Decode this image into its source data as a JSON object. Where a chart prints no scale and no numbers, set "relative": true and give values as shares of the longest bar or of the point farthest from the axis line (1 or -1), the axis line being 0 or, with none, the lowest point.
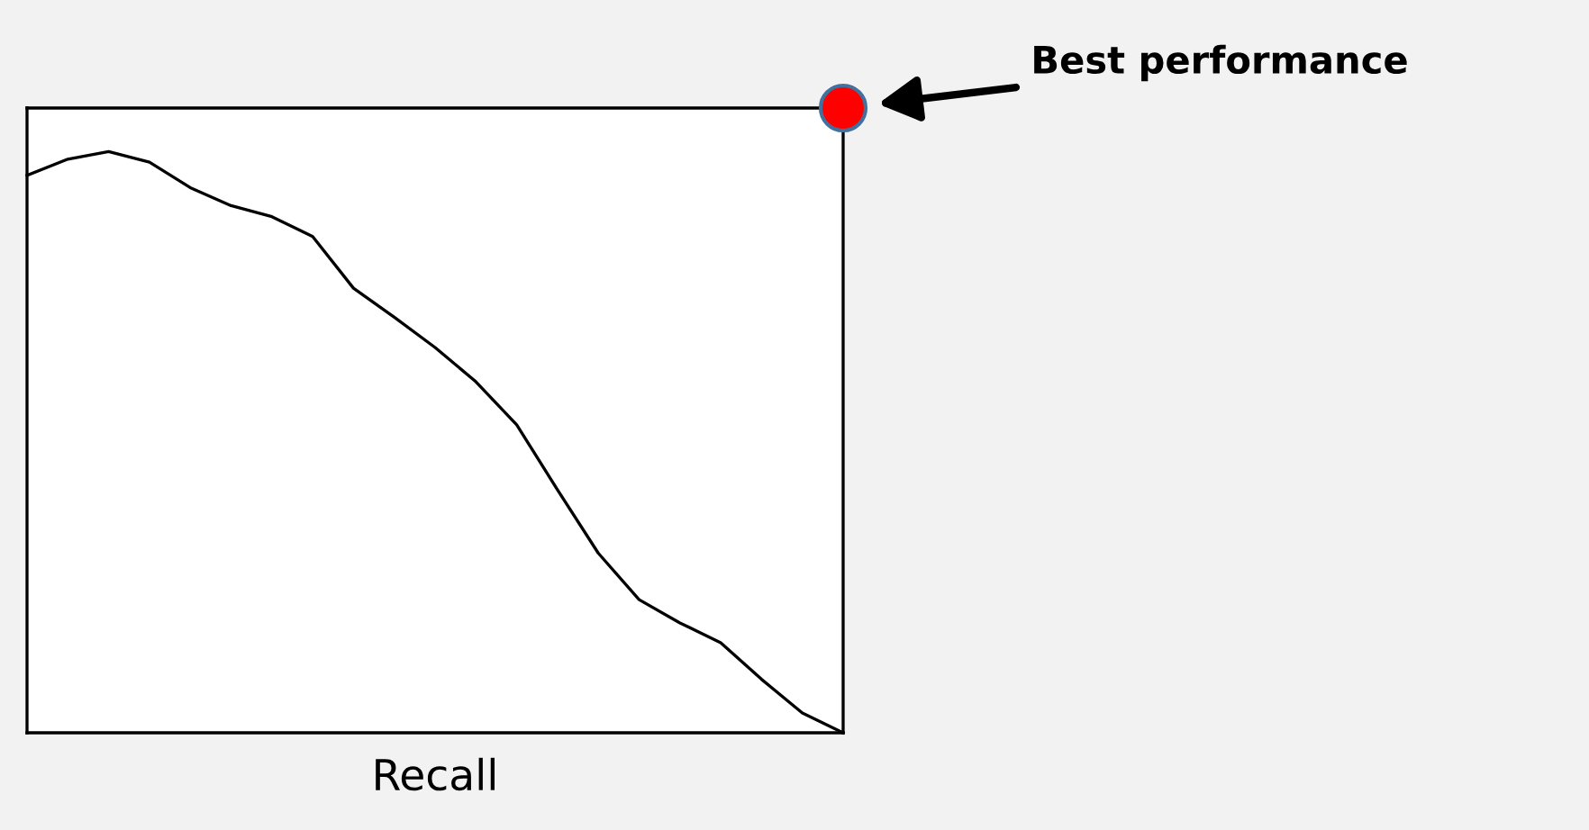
{
  "chart_data": {
    "type": "line",
    "relative": true,
    "xlabel": "Recall",
    "categories": [
      null,
      null,
      null,
      null,
      null,
      null,
      null,
      null,
      null,
      null,
      null,
      null,
      null,
      null,
      null,
      null,
      null,
      null,
      null,
      null,
      null
    ],
    "grid": false,
    "legend": false,
    "tick_labels": false,
    "color": "#000000",
    "marker": "none",
    "line_style": "solid",
    "values": [
      0.959,
      0.987,
      1,
      0.982,
      0.938,
      0.907,
      0.888,
      0.854,
      0.765,
      0.715,
      0.663,
      0.604,
      0.53,
      0.418,
      0.309,
      0.229,
      0.189,
      0.155,
      0.092,
      0.034,
      0
    ],
    "annotations": [
      "Best performance"
    ]
  }
}
